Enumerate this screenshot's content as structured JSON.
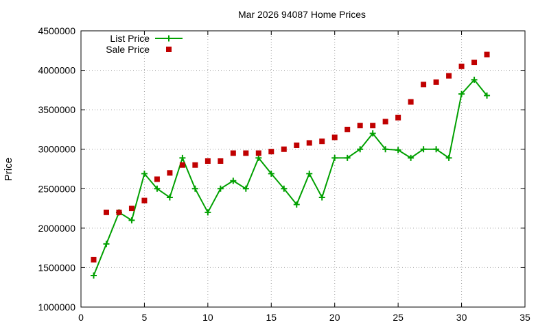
{
  "chart_data": {
    "type": "line",
    "title": "Mar 2026 94087 Home Prices",
    "xlabel": "",
    "ylabel": "Price",
    "xlim": [
      0,
      35
    ],
    "ylim": [
      1000000,
      4500000
    ],
    "x_ticks": [
      0,
      5,
      10,
      15,
      20,
      25,
      30,
      35
    ],
    "y_ticks": [
      1000000,
      1500000,
      2000000,
      2500000,
      3000000,
      3500000,
      4000000,
      4500000
    ],
    "grid": true,
    "legend_position": "top-left",
    "series": [
      {
        "name": "List Price",
        "kind": "line-points",
        "color": "#00a000",
        "marker": "plus",
        "x": [
          1,
          2,
          3,
          4,
          5,
          6,
          7,
          8,
          9,
          10,
          11,
          12,
          13,
          14,
          15,
          16,
          17,
          18,
          19,
          20,
          21,
          22,
          23,
          24,
          25,
          26,
          27,
          28,
          29,
          30,
          31,
          32
        ],
        "values": [
          1400000,
          1800000,
          2200000,
          2100000,
          2690000,
          2500000,
          2390000,
          2890000,
          2500000,
          2200000,
          2500000,
          2600000,
          2500000,
          2890000,
          2690000,
          2500000,
          2300000,
          2690000,
          2390000,
          2890000,
          2890000,
          3000000,
          3200000,
          3000000,
          2990000,
          2890000,
          3000000,
          3000000,
          2890000,
          3700000,
          3880000,
          3680000
        ]
      },
      {
        "name": "Sale Price",
        "kind": "points",
        "color": "#c00000",
        "marker": "square",
        "x": [
          1,
          2,
          3,
          4,
          5,
          6,
          7,
          8,
          9,
          10,
          11,
          12,
          13,
          14,
          15,
          16,
          17,
          18,
          19,
          20,
          21,
          22,
          23,
          24,
          25,
          26,
          27,
          28,
          29,
          30,
          31,
          32
        ],
        "values": [
          1600000,
          2200000,
          2200000,
          2250000,
          2350000,
          2620000,
          2700000,
          2800000,
          2800000,
          2850000,
          2850000,
          2950000,
          2950000,
          2950000,
          2970000,
          3000000,
          3050000,
          3080000,
          3100000,
          3150000,
          3250000,
          3300000,
          3300000,
          3350000,
          3400000,
          3600000,
          3820000,
          3850000,
          3930000,
          4050000,
          4100000,
          4200000
        ]
      }
    ]
  }
}
